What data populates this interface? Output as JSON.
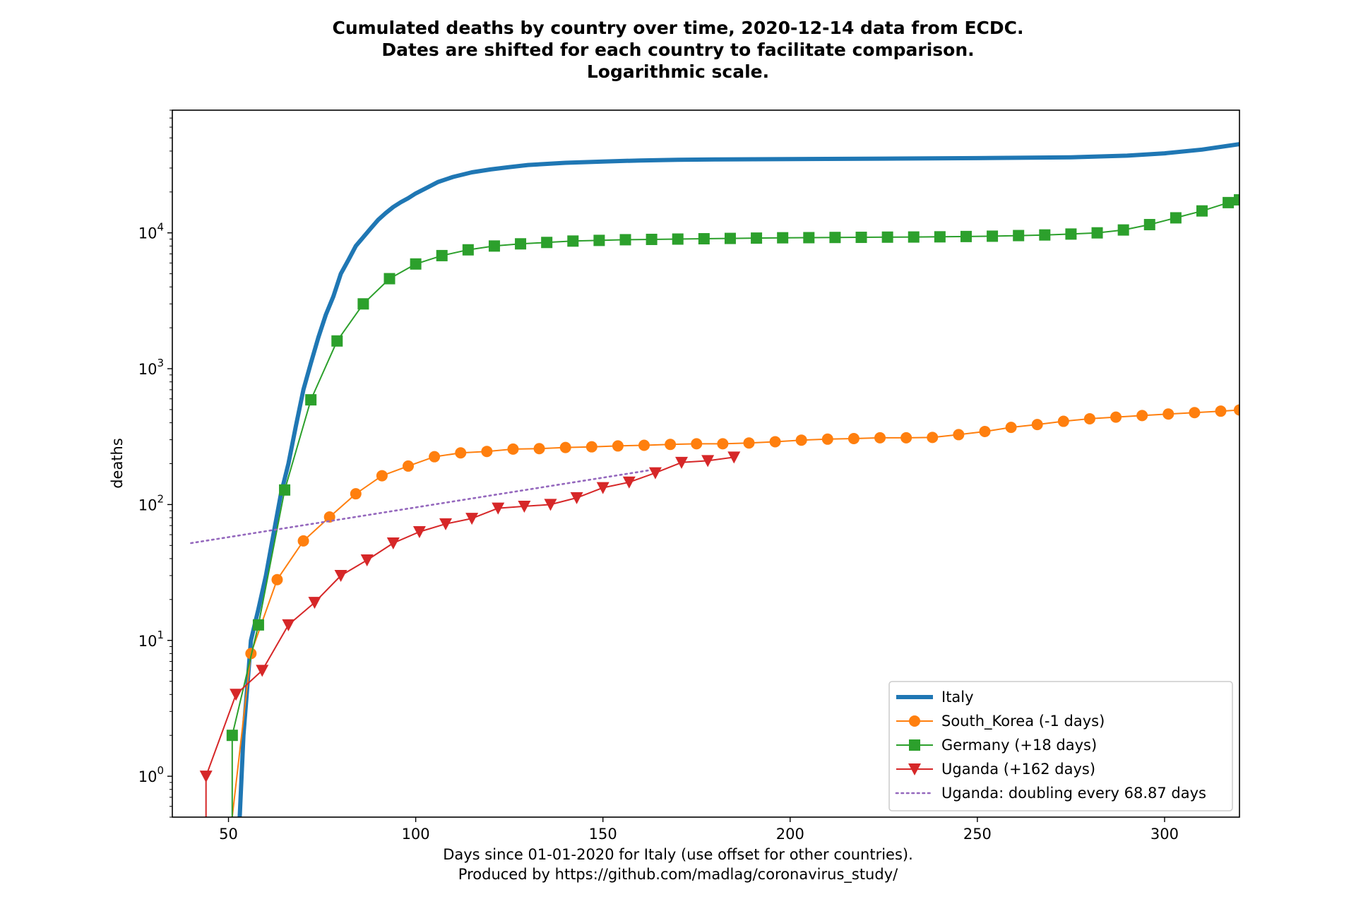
{
  "chart_data": {
    "type": "line",
    "title_lines": [
      "Cumulated deaths by country over time, 2020-12-14 data from ECDC.",
      "Dates are shifted for each country to facilitate comparison.",
      "Logarithmic scale."
    ],
    "xlabel_lines": [
      "Days since 01-01-2020 for Italy (use offset for other countries).",
      "Produced by https://github.com/madlag/coronavirus_study/"
    ],
    "ylabel": "deaths",
    "y_scale": "log",
    "xlim": [
      35,
      320
    ],
    "ylim": [
      0.5,
      80000
    ],
    "x_ticks": [
      50,
      100,
      150,
      200,
      250,
      300
    ],
    "y_ticks": [
      {
        "value": 1,
        "base": "10",
        "exp": "0"
      },
      {
        "value": 10,
        "base": "10",
        "exp": "1"
      },
      {
        "value": 100,
        "base": "10",
        "exp": "2"
      },
      {
        "value": 1000,
        "base": "10",
        "exp": "3"
      },
      {
        "value": 10000,
        "base": "10",
        "exp": "4"
      }
    ],
    "legend_position": "lower right",
    "grid": false,
    "series": [
      {
        "name": "Italy",
        "color": "#1f77b4",
        "marker": "none",
        "line": "solid-thick",
        "x": [
          53,
          54,
          56,
          58,
          60,
          62,
          64,
          66,
          68,
          70,
          72,
          74,
          76,
          78,
          80,
          82,
          84,
          86,
          88,
          90,
          92,
          94,
          96,
          98,
          100,
          103,
          106,
          110,
          115,
          120,
          125,
          130,
          140,
          150,
          160,
          170,
          180,
          200,
          225,
          250,
          275,
          290,
          300,
          310,
          320
        ],
        "y": [
          0.5,
          2,
          10,
          17,
          30,
          60,
          120,
          200,
          380,
          700,
          1100,
          1700,
          2500,
          3400,
          5000,
          6300,
          8000,
          9300,
          10800,
          12500,
          14000,
          15500,
          16800,
          18000,
          19500,
          21500,
          23700,
          25800,
          27900,
          29300,
          30500,
          31600,
          32800,
          33500,
          34100,
          34500,
          34700,
          34900,
          35200,
          35500,
          36000,
          37000,
          38500,
          41000,
          45000
        ]
      },
      {
        "name": "South_Korea (-1 days)",
        "color": "#ff7f0e",
        "marker": "circle",
        "x": [
          51,
          56,
          63,
          70,
          77,
          84,
          91,
          98,
          105,
          112,
          119,
          126,
          133,
          140,
          147,
          154,
          161,
          168,
          175,
          182,
          189,
          196,
          203,
          210,
          217,
          224,
          231,
          238,
          245,
          252,
          259,
          266,
          273,
          280,
          287,
          294,
          301,
          308,
          315,
          320
        ],
        "y": [
          0.5,
          8,
          28,
          54,
          81,
          120,
          163,
          192,
          225,
          240,
          246,
          256,
          258,
          263,
          266,
          270,
          273,
          277,
          280,
          280,
          284,
          290,
          298,
          303,
          306,
          310,
          310,
          312,
          327,
          345,
          370,
          388,
          410,
          428,
          440,
          452,
          464,
          475,
          487,
          497
        ]
      },
      {
        "name": "Germany (+18 days)",
        "color": "#2ca02c",
        "marker": "square",
        "x": [
          51,
          51,
          58,
          65,
          72,
          79,
          86,
          93,
          100,
          107,
          114,
          121,
          128,
          135,
          142,
          149,
          156,
          163,
          170,
          177,
          184,
          191,
          198,
          205,
          212,
          219,
          226,
          233,
          240,
          247,
          254,
          261,
          268,
          275,
          282,
          289,
          296,
          303,
          310,
          317,
          320
        ],
        "y": [
          0.5,
          2,
          13,
          128,
          590,
          1600,
          3000,
          4600,
          5900,
          6800,
          7500,
          8000,
          8300,
          8500,
          8700,
          8800,
          8900,
          8950,
          9000,
          9050,
          9100,
          9150,
          9200,
          9220,
          9250,
          9270,
          9300,
          9320,
          9350,
          9400,
          9450,
          9550,
          9650,
          9800,
          10000,
          10500,
          11500,
          12900,
          14500,
          16700,
          17500
        ]
      },
      {
        "name": "Uganda (+162 days)",
        "color": "#d62728",
        "marker": "triangle_down",
        "x": [
          44,
          44,
          52,
          59,
          66,
          73,
          80,
          87,
          94,
          101,
          108,
          115,
          122,
          129,
          136,
          143,
          150,
          157,
          164,
          171,
          178,
          185
        ],
        "y": [
          0.5,
          1,
          4,
          6,
          13,
          19,
          30,
          39,
          52,
          63,
          72,
          79,
          94,
          97,
          100,
          112,
          133,
          146,
          171,
          204,
          210,
          223
        ]
      },
      {
        "name": "Uganda: doubling every 68.87 days",
        "color": "#9467bd",
        "marker": "none",
        "line": "dotted",
        "x": [
          40,
          162
        ],
        "y": [
          52,
          178
        ]
      }
    ]
  }
}
